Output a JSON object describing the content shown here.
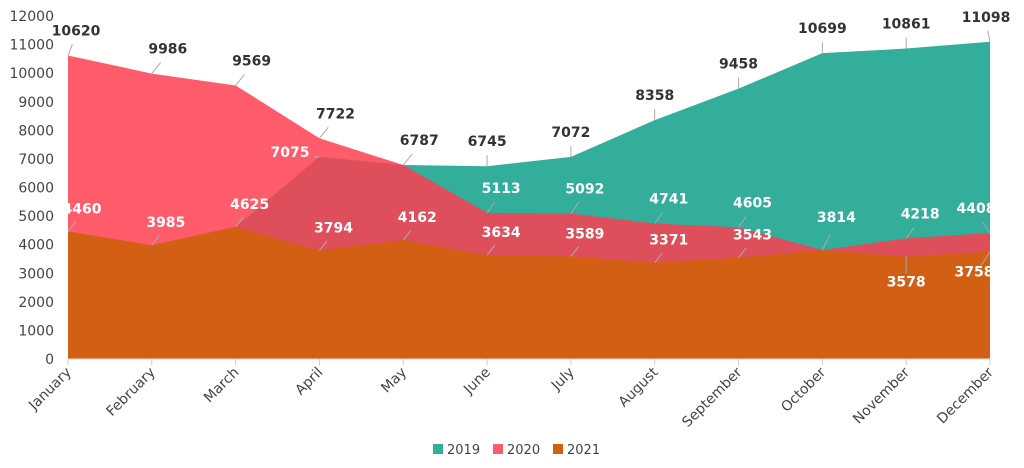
{
  "chart_data": {
    "type": "area",
    "categories": [
      "January",
      "February",
      "March",
      "April",
      "May",
      "June",
      "July",
      "August",
      "September",
      "October",
      "November",
      "December"
    ],
    "series": [
      {
        "name": "2019",
        "color": "#33ae9a",
        "values": [
          null,
          null,
          4625,
          7075,
          6787,
          6745,
          7072,
          8358,
          9458,
          10699,
          10861,
          11098
        ]
      },
      {
        "name": "2020",
        "color": "#ff3d4f",
        "values": [
          10620,
          9986,
          9569,
          7722,
          6787,
          5113,
          5092,
          4741,
          4605,
          3814,
          4218,
          4408
        ]
      },
      {
        "name": "2021",
        "color": "#d35f15",
        "values": [
          4460,
          3985,
          4625,
          3794,
          4162,
          3634,
          3589,
          3371,
          3543,
          3814,
          3578,
          3758
        ]
      }
    ],
    "yticks": [
      0,
      1000,
      2000,
      3000,
      4000,
      5000,
      6000,
      7000,
      8000,
      9000,
      10000,
      11000,
      12000
    ],
    "ylim": [
      0,
      12000
    ],
    "grid": false,
    "legend": "bottom",
    "title": "",
    "xlabel": "",
    "ylabel": ""
  }
}
